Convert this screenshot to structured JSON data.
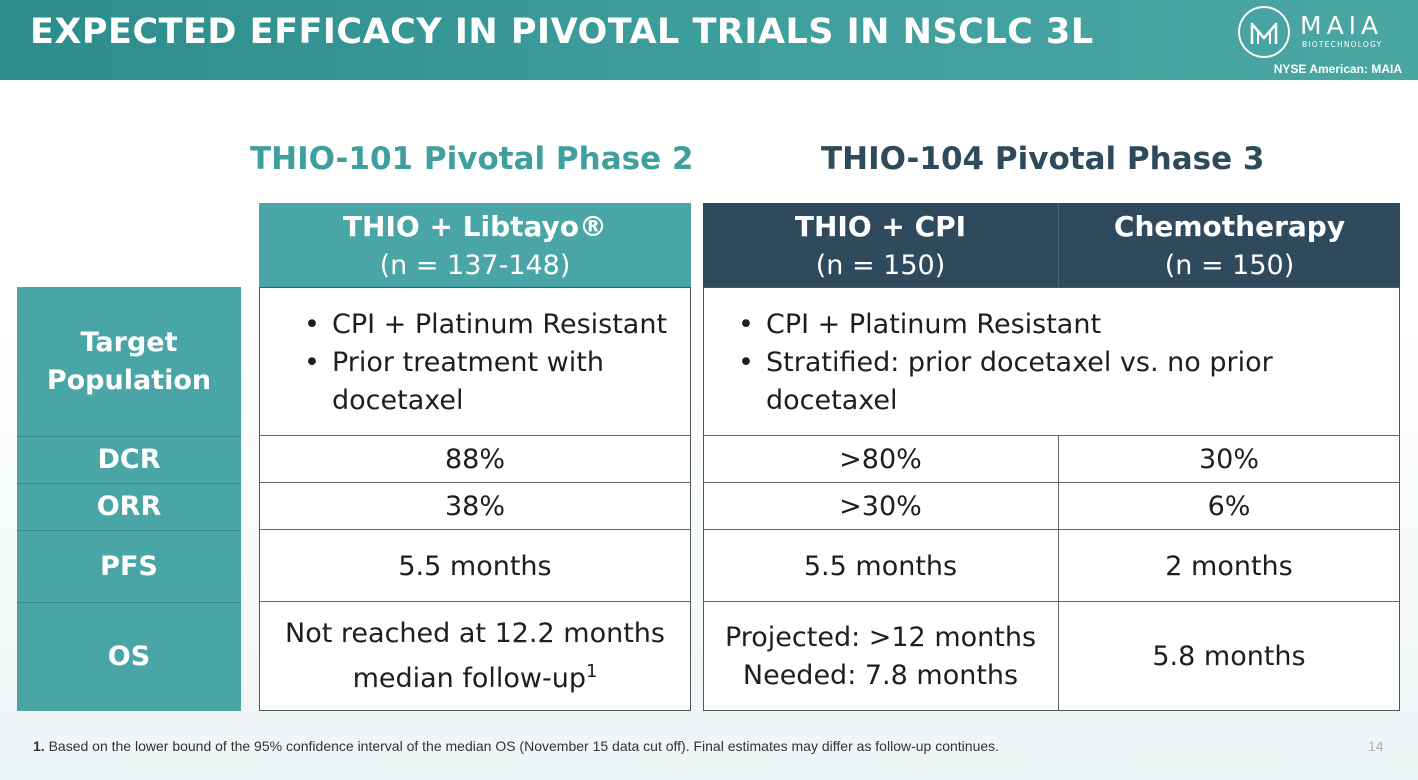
{
  "header": {
    "title": "EXPECTED EFFICACY IN PIVOTAL TRIALS IN NSCLC 3L",
    "logo_text": "MAIA",
    "logo_sub": "BIOTECHNOLOGY",
    "exchange": "NYSE American: MAIA"
  },
  "phases": {
    "phase2_title": "THIO-101 Pivotal Phase 2",
    "phase3_title": "THIO-104 Pivotal Phase 3"
  },
  "columns": [
    {
      "name": "THIO + Libtayo®",
      "n": "(n = 137-148)"
    },
    {
      "name": "THIO + CPI",
      "n": "(n = 150)"
    },
    {
      "name": "Chemotherapy",
      "n": "(n = 150)"
    }
  ],
  "rows": {
    "target_label_1": "Target",
    "target_label_2": "Population",
    "dcr_label": "DCR",
    "orr_label": "ORR",
    "pfs_label": "PFS",
    "os_label": "OS"
  },
  "target": {
    "col1_bullet1": "CPI + Platinum Resistant",
    "col1_bullet2": "Prior treatment with docetaxel",
    "col23_bullet1": "CPI + Platinum Resistant",
    "col23_bullet2": "Stratified: prior docetaxel vs. no prior docetaxel"
  },
  "dcr": {
    "col1": "88%",
    "col2": ">80%",
    "col3": "30%"
  },
  "orr": {
    "col1": "38%",
    "col2": ">30%",
    "col3": "6%"
  },
  "pfs": {
    "col1": "5.5 months",
    "col2": "5.5 months",
    "col3": "2 months"
  },
  "os": {
    "col1_line1": "Not reached at 12.2 months",
    "col1_line2": "median follow-up",
    "col1_sup": "1",
    "col2_line1": "Projected: >12 months",
    "col2_line2": "Needed: 7.8 months",
    "col3": "5.8 months"
  },
  "footnote": {
    "number": "1.",
    "text": " Based on the lower bound of the 95% confidence interval of the median OS (November 15 data cut off). Final estimates may differ as follow-up continues."
  },
  "page_number": "14",
  "colors": {
    "teal": "#4aa6a6",
    "navy": "#2f4a5c",
    "header_teal": "#3d9e9c"
  }
}
